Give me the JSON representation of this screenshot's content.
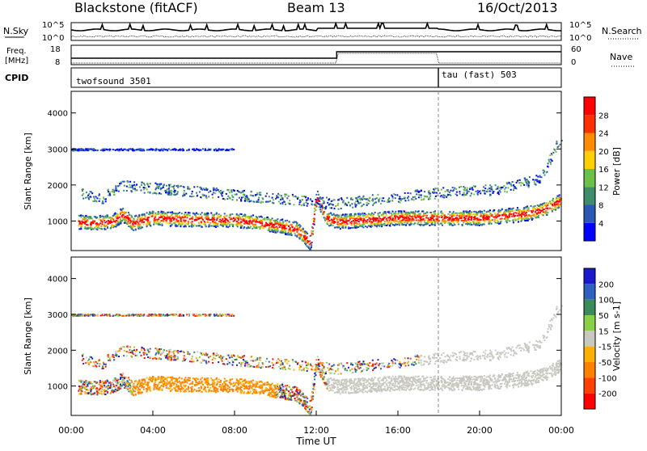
{
  "header": {
    "station": "Blackstone (fitACF)",
    "beam": "Beam 13",
    "date": "16/Oct/2013"
  },
  "noise_panel": {
    "left_label": "N.Sky",
    "right_label": "N.Search",
    "left_ticks": [
      "10^5",
      "10^0"
    ],
    "right_ticks": [
      "10^5",
      "10^0"
    ]
  },
  "freq_panel": {
    "left_label_1": "Freq.",
    "left_label_2": "[MHz]",
    "right_label": "Nave",
    "left_ticks": [
      "18",
      "8"
    ],
    "right_ticks": [
      "60",
      "0"
    ]
  },
  "cpid_panel": {
    "label": "CPID",
    "modes": [
      {
        "name": "twofsound 3501",
        "start_hour": 0
      },
      {
        "name": "tau (fast) 503",
        "start_hour": 18
      }
    ]
  },
  "power_panel": {
    "ylabel": "Slant Range [km]",
    "yticks": [
      "1000",
      "2000",
      "3000",
      "4000"
    ],
    "colorbar_label": "Power [dB]",
    "colorbar_ticks": [
      "4",
      "8",
      "12",
      "16",
      "20",
      "24",
      "28"
    ],
    "colors": [
      "#0000ff",
      "#2a58b4",
      "#3d8c6a",
      "#6cc04a",
      "#ffd000",
      "#ff8c00",
      "#ff3000",
      "#ff0000"
    ]
  },
  "velocity_panel": {
    "ylabel": "Slant Range [km]",
    "yticks": [
      "1000",
      "2000",
      "3000",
      "4000"
    ],
    "colorbar_label": "Velocity [m s-1]",
    "colorbar_ticks": [
      "200",
      "100",
      "50",
      "15",
      "-15",
      "-50",
      "-100",
      "-200"
    ],
    "colors": [
      "#1a1acc",
      "#3060c0",
      "#3a8a5a",
      "#88d048",
      "#c8c8c0",
      "#ffb000",
      "#ff8000",
      "#ff4000",
      "#ff0000"
    ]
  },
  "xaxis": {
    "label": "Time UT",
    "ticks": [
      "00:00",
      "04:00",
      "08:00",
      "12:00",
      "16:00",
      "20:00",
      "00:00"
    ]
  },
  "chart_data": {
    "type": "heatmap",
    "title": "Blackstone (fitACF)  Beam 13  16/Oct/2013",
    "xlabel": "Time UT",
    "ylabel": "Slant Range [km]",
    "xlim": [
      0,
      24
    ],
    "ylim": [
      180,
      4600
    ],
    "mode_change_hour": 18,
    "scatter_bands": [
      {
        "name": "main_echo",
        "points": [
          [
            0.3,
            1000
          ],
          [
            1,
            950
          ],
          [
            2,
            1000
          ],
          [
            2.5,
            1200
          ],
          [
            3,
            950
          ],
          [
            4,
            1100
          ],
          [
            6,
            1050
          ],
          [
            8,
            1050
          ],
          [
            10,
            900
          ],
          [
            11,
            800
          ],
          [
            11.7,
            400
          ],
          [
            12,
            1700
          ],
          [
            12.5,
            1100
          ],
          [
            13,
            1000
          ],
          [
            16,
            1100
          ],
          [
            18,
            1100
          ],
          [
            20,
            1100
          ],
          [
            22,
            1200
          ],
          [
            23,
            1300
          ],
          [
            24,
            1600
          ]
        ]
      },
      {
        "name": "upper_echo",
        "points": [
          [
            0.5,
            1800
          ],
          [
            1.5,
            1650
          ],
          [
            2.5,
            2000
          ],
          [
            13,
            1500
          ],
          [
            18,
            1800
          ],
          [
            21,
            1900
          ],
          [
            23,
            2200
          ],
          [
            24,
            3400
          ]
        ]
      }
    ],
    "power_range_db": [
      0,
      30
    ],
    "velocity_range_ms": [
      -250,
      250
    ]
  }
}
